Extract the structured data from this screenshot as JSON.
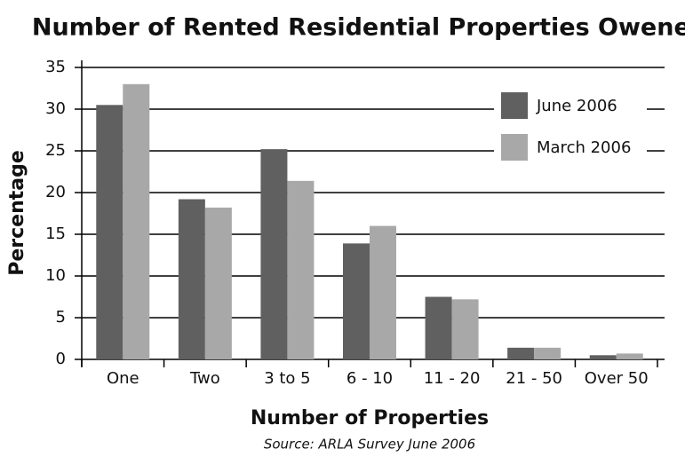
{
  "chart_data": {
    "type": "bar",
    "title": "Number of Rented Residential Properties Owened",
    "x_label": "Number of Properties",
    "y_label": "Percentage",
    "source": "Source: ARLA Survey June 2006",
    "categories": [
      "One",
      "Two",
      "3 to 5",
      "6 - 10",
      "11 - 20",
      "21 - 50",
      "Over 50"
    ],
    "series": [
      {
        "name": "June 2006",
        "color": "#606060",
        "values": [
          30.5,
          19.2,
          25.2,
          13.9,
          7.5,
          1.4,
          0.5
        ]
      },
      {
        "name": "March 2006",
        "color": "#a8a8a8",
        "values": [
          33,
          18.2,
          21.4,
          16,
          7.2,
          1.4,
          0.7
        ]
      }
    ],
    "ylim": [
      0,
      35
    ],
    "yticks": [
      0,
      5,
      10,
      15,
      20,
      25,
      30,
      35
    ],
    "grid": true,
    "legend": "upper right"
  }
}
